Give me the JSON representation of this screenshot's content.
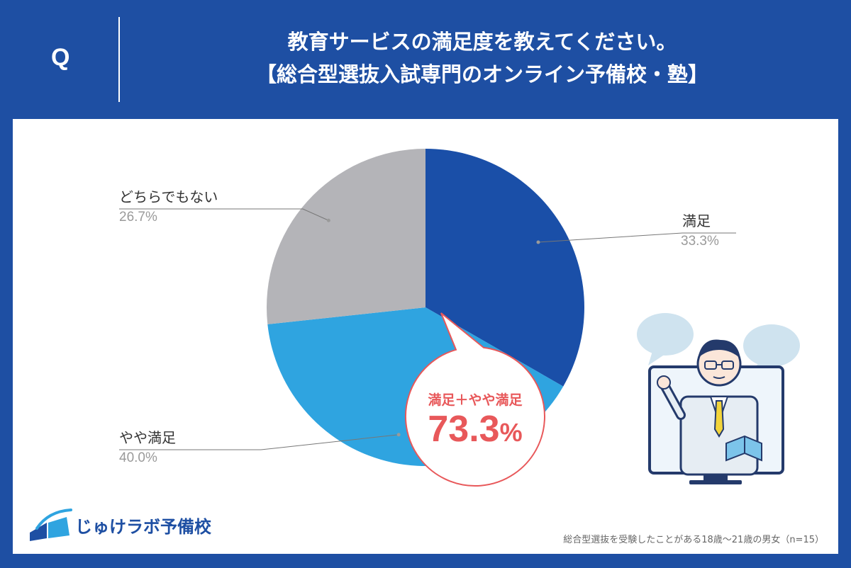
{
  "header": {
    "q_label": "Q",
    "title_line1": "教育サービスの満足度を教えてください。",
    "title_line2": "【総合型選抜入試専門のオンライン予備校・塾】"
  },
  "chart_data": {
    "type": "pie",
    "title": "",
    "unit": "%",
    "slices": [
      {
        "label": "満足",
        "value": 33.3,
        "value_text": "33.3%",
        "color": "#1a4fa8"
      },
      {
        "label": "やや満足",
        "value": 40.0,
        "value_text": "40.0%",
        "color": "#2fa4e0"
      },
      {
        "label": "どちらでもない",
        "value": 26.7,
        "value_text": "26.7%",
        "color": "#b4b4b8"
      }
    ],
    "start": "12 o'clock",
    "direction": "clockwise",
    "legend": "leader-line labels beside the pie",
    "callout": {
      "title": "満足＋やや満足",
      "value_main": "73.3",
      "value_unit": "%",
      "color": "#e8585a"
    }
  },
  "logo": {
    "text": "じゅけラボ予備校"
  },
  "footnote": "総合型選抜を受験したことがある18歳〜21歳の男女（n=15）",
  "colors": {
    "header_bg": "#1e4fa3",
    "panel_bg": "#ffffff",
    "accent": "#e8585a"
  },
  "illustration": {
    "icon": "teacher-on-monitor-icon"
  }
}
